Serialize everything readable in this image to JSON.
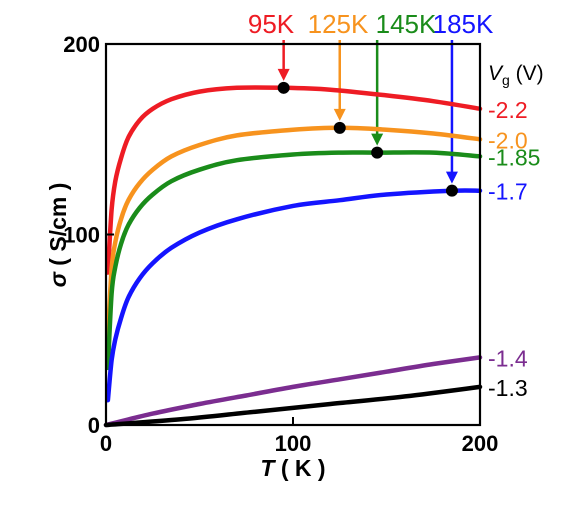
{
  "chart_data": {
    "type": "line",
    "xlabel": {
      "italic": "T",
      "rest": " ( K )"
    },
    "ylabel": {
      "italic": "σ",
      "rest": " ( S/cm )"
    },
    "xlim": [
      0,
      200
    ],
    "ylim": [
      0,
      200
    ],
    "x_ticks": [
      0,
      100,
      200
    ],
    "y_ticks": [
      0,
      100,
      200
    ],
    "x_tick_labels": [
      "0",
      "100",
      "200"
    ],
    "y_tick_labels": [
      "0",
      "100",
      "200"
    ],
    "legend_title": {
      "italic": "V",
      "sub": "g",
      "rest": " (V)"
    },
    "series": [
      {
        "name": "-2.2",
        "color": "#ee1c24",
        "x": [
          1,
          3,
          5,
          8,
          12,
          18,
          25,
          35,
          50,
          70,
          95,
          120,
          150,
          175,
          200
        ],
        "y": [
          80,
          113,
          128,
          140,
          151,
          160,
          166,
          171,
          175,
          177,
          177,
          176,
          173,
          170,
          166
        ]
      },
      {
        "name": "-2.0",
        "color": "#f7931e",
        "x": [
          1,
          3,
          5,
          8,
          12,
          18,
          25,
          35,
          50,
          70,
          100,
          125,
          150,
          175,
          200
        ],
        "y": [
          46,
          82,
          96,
          108,
          118,
          127,
          134,
          141,
          147,
          152,
          155,
          156,
          155,
          153,
          150
        ]
      },
      {
        "name": "-1.85",
        "color": "#1a8c1a",
        "x": [
          1,
          3,
          5,
          8,
          12,
          18,
          25,
          35,
          50,
          70,
          100,
          125,
          145,
          175,
          200
        ],
        "y": [
          30,
          69,
          83,
          95,
          105,
          114,
          121,
          128,
          134,
          139,
          142,
          143,
          143,
          143,
          141
        ]
      },
      {
        "name": "-1.7",
        "color": "#1414ff",
        "x": [
          1,
          3,
          5,
          8,
          12,
          18,
          25,
          35,
          50,
          70,
          100,
          125,
          150,
          185,
          200
        ],
        "y": [
          13,
          34,
          45,
          56,
          67,
          77,
          85,
          93,
          101,
          108,
          115,
          118,
          121,
          123,
          123
        ]
      },
      {
        "name": "-1.4",
        "color": "#7b2d90",
        "x": [
          0,
          25,
          50,
          75,
          100,
          125,
          150,
          175,
          200
        ],
        "y": [
          0,
          6,
          11,
          15.5,
          20,
          24,
          28,
          32,
          35.5
        ]
      },
      {
        "name": "-1.3",
        "color": "#000000",
        "x": [
          0,
          40,
          80,
          120,
          160,
          200
        ],
        "y": [
          0,
          3,
          7,
          11,
          15,
          20
        ]
      }
    ],
    "markers": [
      {
        "x": 95,
        "y": 177
      },
      {
        "x": 125,
        "y": 156
      },
      {
        "x": 145,
        "y": 143
      },
      {
        "x": 185,
        "y": 123
      }
    ],
    "annotations": [
      {
        "text": "95K",
        "color": "#ee1c24",
        "x": 95
      },
      {
        "text": "125K",
        "color": "#f7931e",
        "x": 125
      },
      {
        "text": "145K",
        "color": "#1a8c1a",
        "x": 145
      },
      {
        "text": "185K",
        "color": "#1414ff",
        "x": 185
      }
    ]
  }
}
